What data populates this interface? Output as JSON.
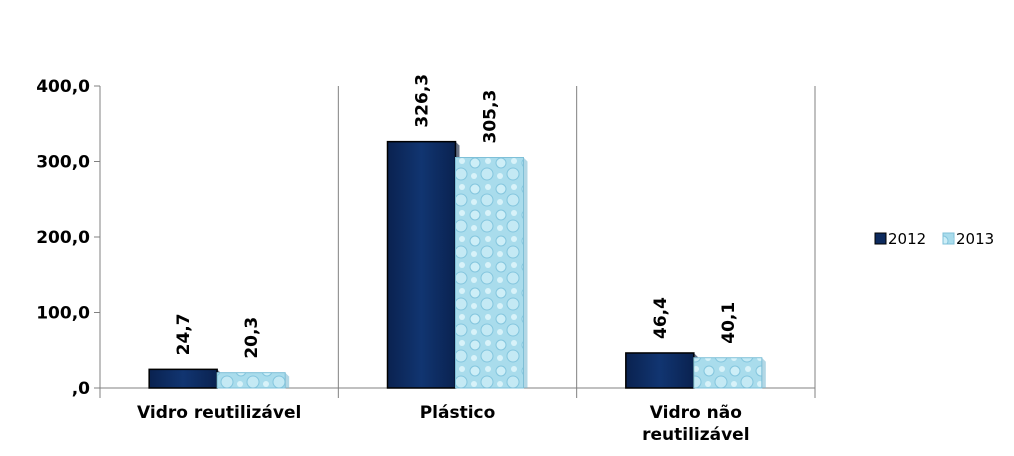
{
  "chart_data": {
    "type": "bar",
    "categories": [
      [
        "Vidro reutilizável"
      ],
      [
        "Plástico"
      ],
      [
        "Vidro não",
        "reutilizável"
      ]
    ],
    "series": [
      {
        "name": "2012",
        "values": [
          24.7,
          326.3,
          46.4
        ],
        "labels": [
          "24,7",
          "326,3",
          "46,4"
        ],
        "color": "#0d2a5e",
        "style": "solid"
      },
      {
        "name": "2013",
        "values": [
          20.3,
          305.3,
          40.1
        ],
        "labels": [
          "20,3",
          "305,3",
          "40,1"
        ],
        "color": "#a9dcec",
        "style": "bubble-texture"
      }
    ],
    "ylim": [
      0,
      400
    ],
    "yticks": [
      0,
      100,
      200,
      300,
      400
    ],
    "ytick_labels": [
      ",0",
      "100,0",
      "200,0",
      "300,0",
      "400,0"
    ],
    "title": "",
    "xlabel": "",
    "ylabel": "",
    "grid": false,
    "legend_position": "right"
  }
}
